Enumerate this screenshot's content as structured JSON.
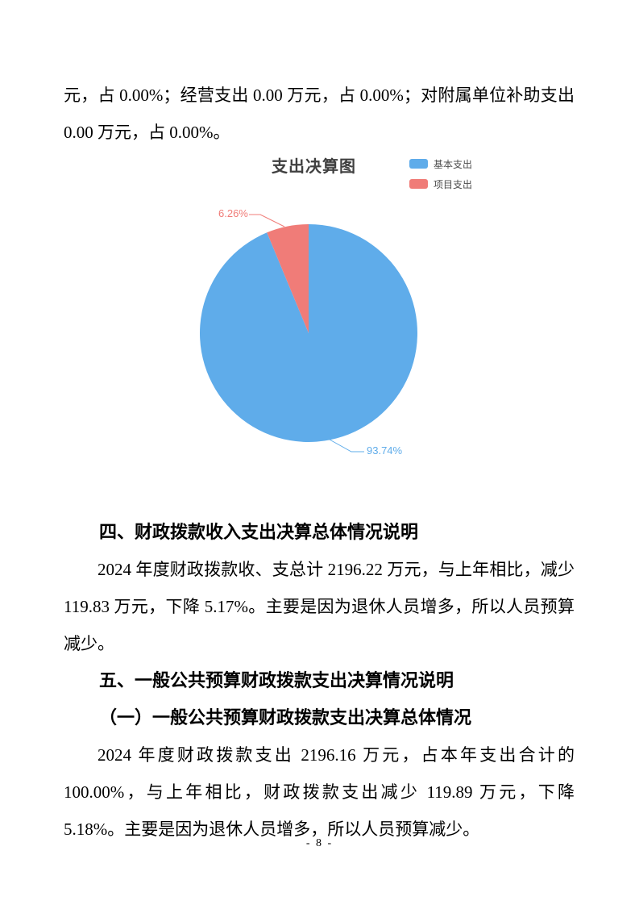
{
  "page": {
    "background": "#ffffff",
    "footer_page_number": "- 8 -"
  },
  "intro_paragraph": "元，占 0.00%；经营支出 0.00 万元，占 0.00%；对附属单位补助支出 0.00 万元，占 0.00%。",
  "chart_data": {
    "type": "pie",
    "title": "支出决算图",
    "legend_position": "top-right",
    "unit": "%",
    "slices": [
      {
        "label": "基本支出",
        "value": 93.74,
        "percent_label": "93.74%",
        "color": "#5FACEA"
      },
      {
        "label": "项目支出",
        "value": 6.26,
        "percent_label": "6.26%",
        "color": "#F07C78"
      }
    ]
  },
  "sections": {
    "four": {
      "heading": "四、财政拨款收入支出决算总体情况说明",
      "paragraph": "2024 年度财政拨款收、支总计 2196.22 万元，与上年相比，减少 119.83 万元，下降 5.17%。主要是因为退休人员增多，所以人员预算减少。"
    },
    "five": {
      "heading": "五、一般公共预算财政拨款支出决算情况说明",
      "subheading": "（一）一般公共预算财政拨款支出决算总体情况",
      "paragraph": "2024 年度财政拨款支出 2196.16 万元，占本年支出合计的 100.00%，与上年相比，财政拨款支出减少 119.89 万元，下降 5.18%。主要是因为退休人员增多，所以人员预算减少。"
    }
  }
}
